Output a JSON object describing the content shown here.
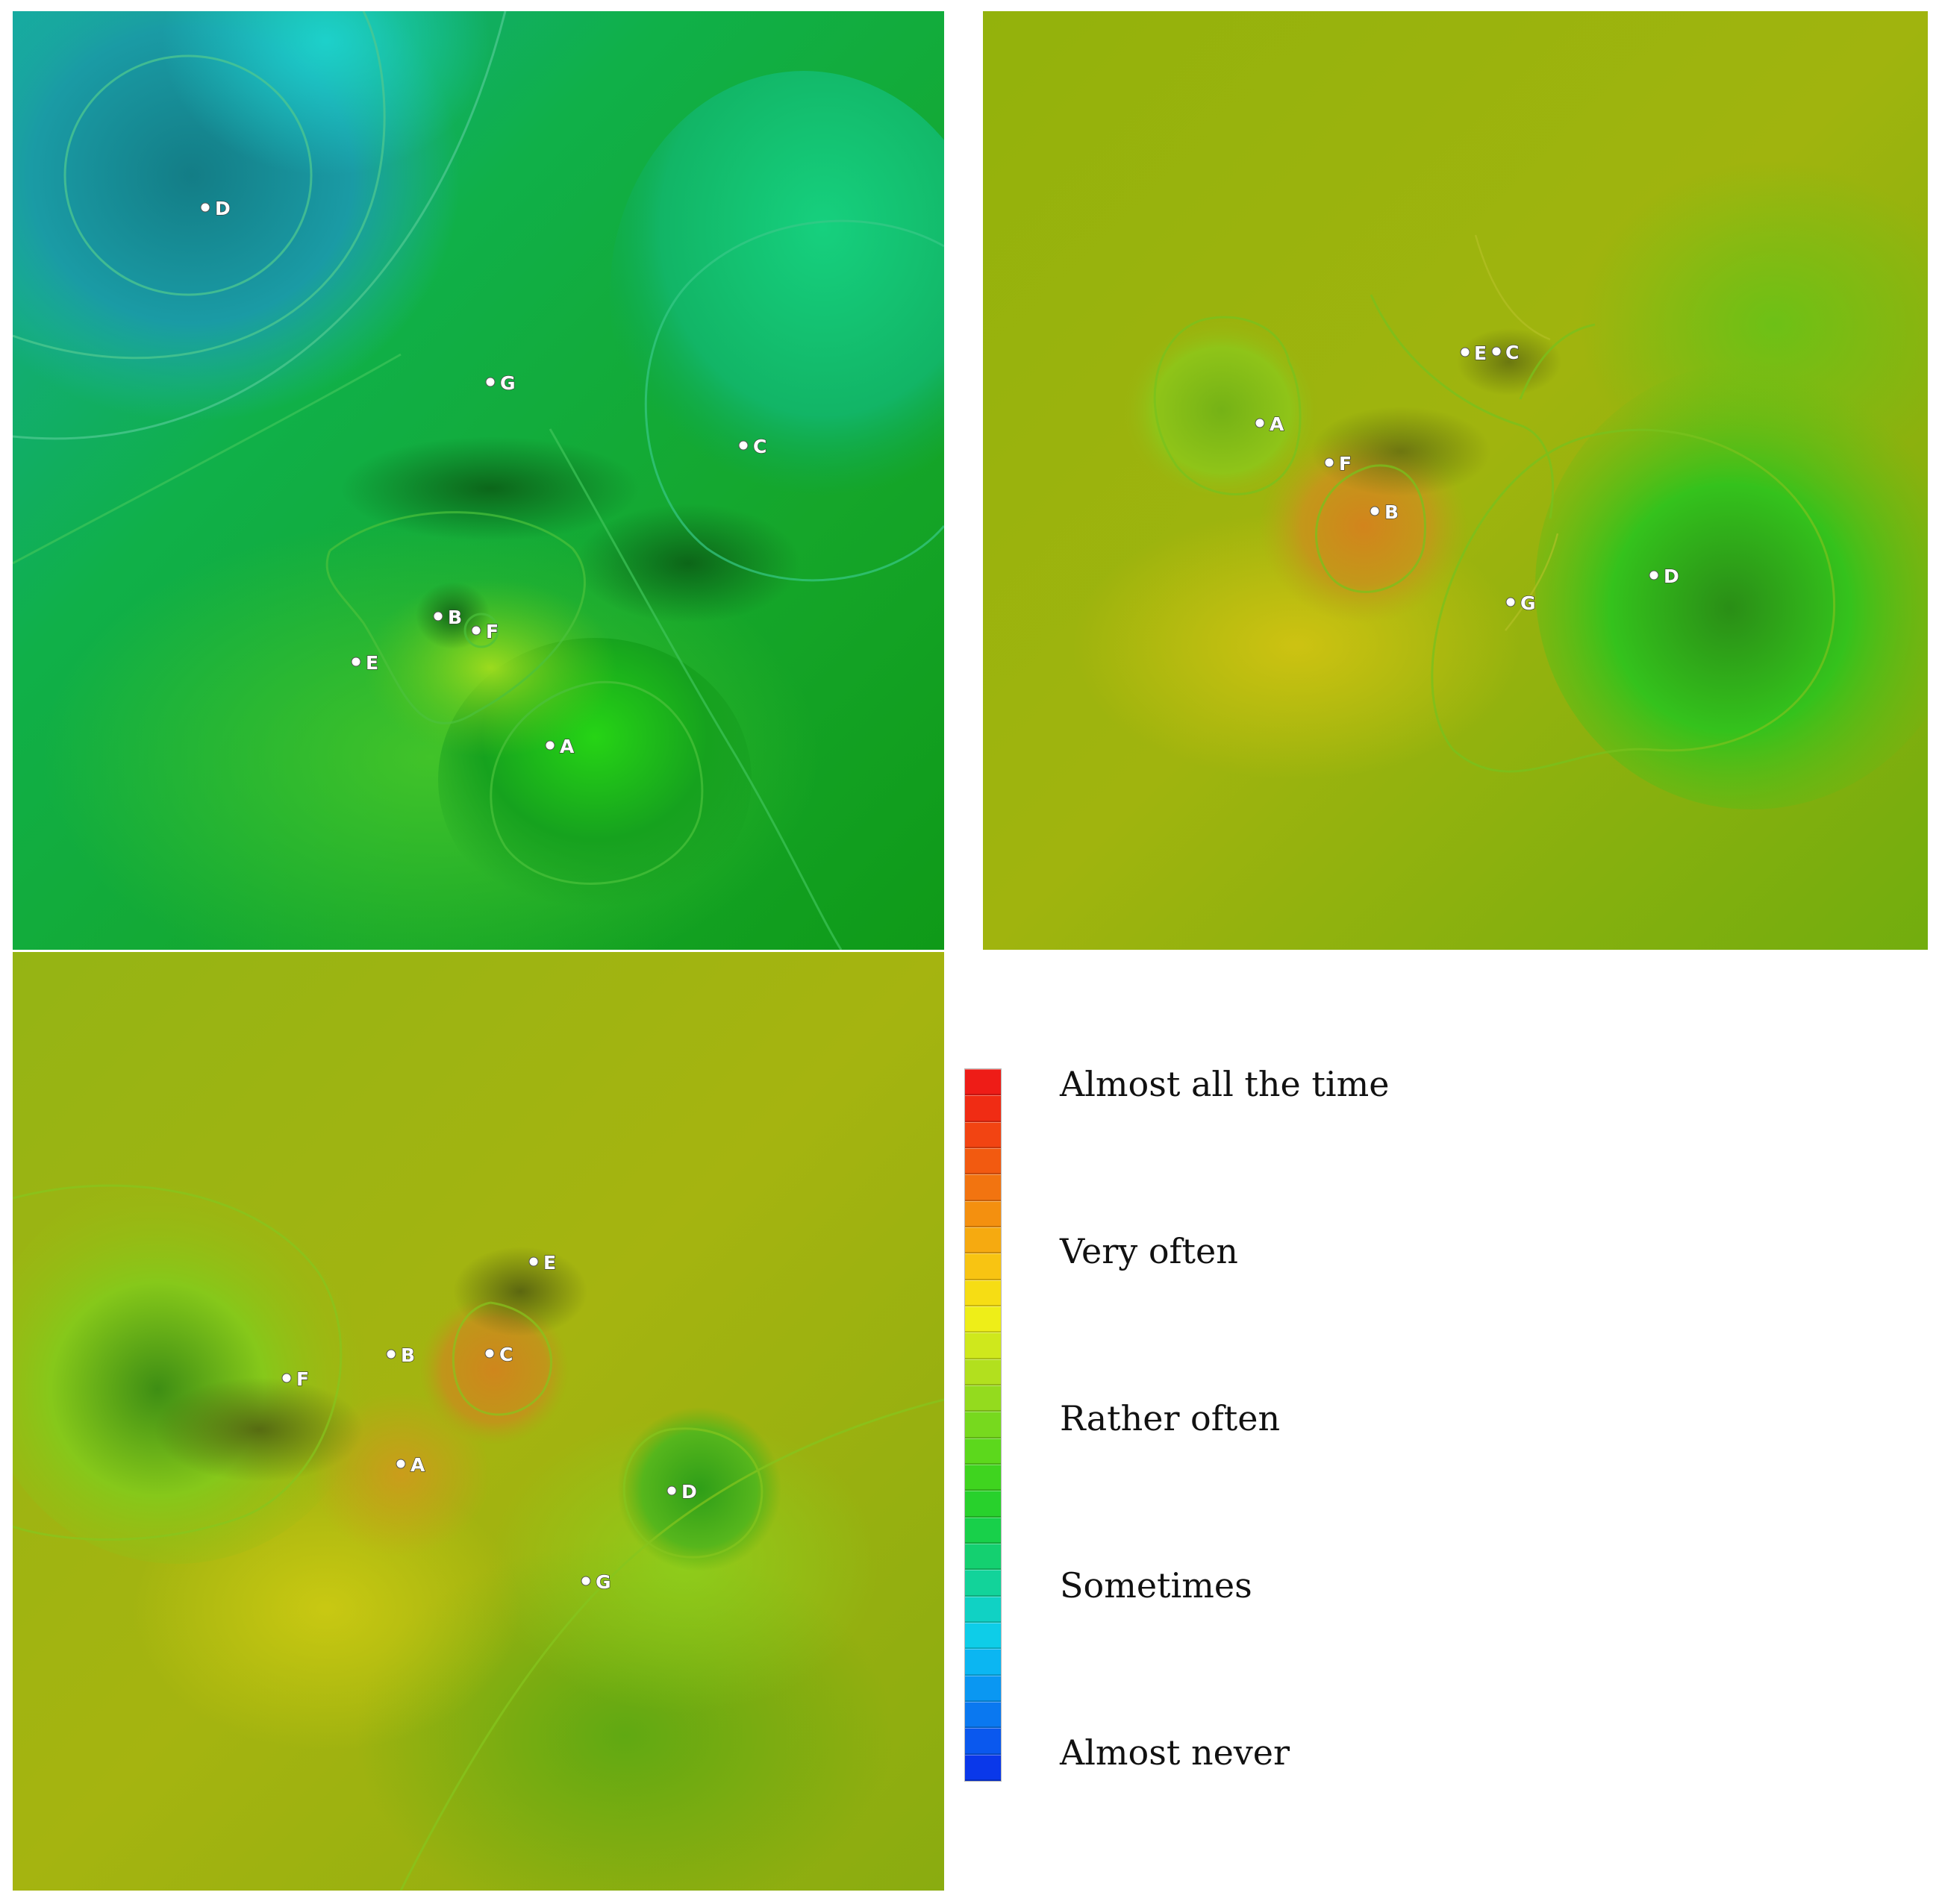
{
  "legend": {
    "labels": [
      "Almost all the time",
      "Very often",
      "Rather often",
      "Sometimes",
      "Almost never"
    ],
    "colors_top_to_bottom": [
      "#ee1c17",
      "#f02c14",
      "#f24412",
      "#f25a10",
      "#f27410",
      "#f4900f",
      "#f6aa10",
      "#f8c412",
      "#f6dd14",
      "#eeee18",
      "#cfe81c",
      "#b2e01e",
      "#94db1e",
      "#77d91e",
      "#5cd81c",
      "#3fd41f",
      "#28d12c",
      "#18d04a",
      "#14d070",
      "#12d39a",
      "#10d2c4",
      "#0ecde8",
      "#0bb6f2",
      "#0a97f2",
      "#0a78f0",
      "#0a58ee",
      "#0a38ea"
    ]
  },
  "panels": [
    {
      "id": "panel-1",
      "points": [
        {
          "label": "D"
        },
        {
          "label": "G"
        },
        {
          "label": "C"
        },
        {
          "label": "B"
        },
        {
          "label": "F"
        },
        {
          "label": "E"
        },
        {
          "label": "A"
        }
      ]
    },
    {
      "id": "panel-2",
      "points": [
        {
          "label": "E"
        },
        {
          "label": "C"
        },
        {
          "label": "A"
        },
        {
          "label": "F"
        },
        {
          "label": "B"
        },
        {
          "label": "D"
        },
        {
          "label": "G"
        }
      ]
    },
    {
      "id": "panel-3",
      "points": [
        {
          "label": "E"
        },
        {
          "label": "B"
        },
        {
          "label": "C"
        },
        {
          "label": "F"
        },
        {
          "label": "A"
        },
        {
          "label": "D"
        },
        {
          "label": "G"
        }
      ]
    }
  ]
}
